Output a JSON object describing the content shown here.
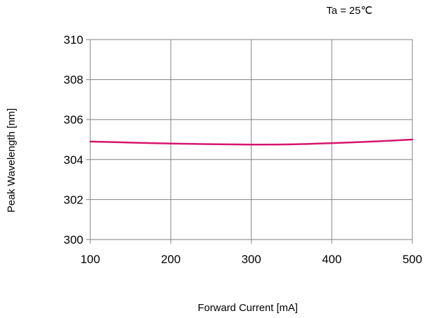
{
  "chart_data": {
    "type": "line",
    "title": "",
    "annotation": "Ta = 25℃",
    "xlabel": "Forward Current [mA]",
    "ylabel": "Peak Wavelength [nm]",
    "xlim": [
      100,
      500
    ],
    "ylim": [
      300,
      310
    ],
    "x_ticks": [
      100,
      200,
      300,
      400,
      500
    ],
    "y_ticks": [
      300,
      302,
      304,
      306,
      308,
      310
    ],
    "grid": true,
    "legend": "none",
    "series": [
      {
        "color": "#d6156c",
        "x": [
          100,
          150,
          200,
          250,
          300,
          350,
          400,
          450,
          500
        ],
        "y": [
          304.9,
          304.85,
          304.8,
          304.77,
          304.75,
          304.76,
          304.82,
          304.9,
          305.0
        ]
      }
    ]
  }
}
